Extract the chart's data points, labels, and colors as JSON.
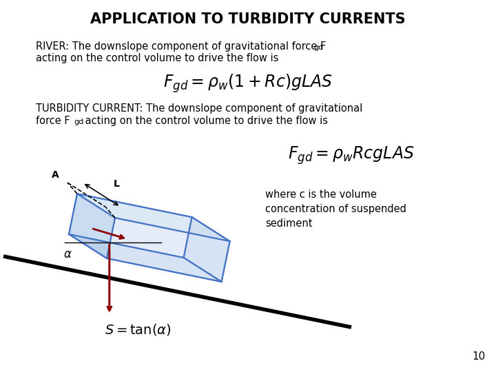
{
  "title": "APPLICATION TO TURBIDITY CURRENTS",
  "title_fontsize": 15,
  "bg_color": "#ffffff",
  "text_color": "#000000",
  "formula1": "$F_{gd} = \\rho_w(1+Rc)gLAS$",
  "formula2": "$F_{gd} = \\rho_w RcgLAS$",
  "formula3": "$S = \\tan(\\alpha)$",
  "where_text": "where c is the volume\nconcentration of suspended\nsediment",
  "page_number": "10",
  "box_color": "#4472c4",
  "box_face_color": "#c5d9f0",
  "slope_color": "#000000",
  "arrow_color": "#8b0000",
  "label_A": "A",
  "label_L": "L",
  "label_alpha": "$\\alpha$"
}
